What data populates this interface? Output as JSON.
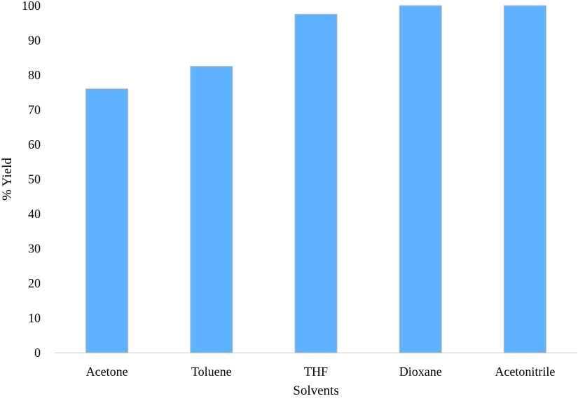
{
  "chart_data": {
    "type": "bar",
    "title": "",
    "xlabel": "Solvents",
    "ylabel": "% Yield",
    "categories": [
      "Acetone",
      "Toluene",
      "THF",
      "Dioxane",
      "Acetonitrile"
    ],
    "values": [
      76,
      82.5,
      97.5,
      100,
      100
    ],
    "ylim": [
      0,
      100
    ],
    "yticks": [
      "0",
      "10",
      "20",
      "30",
      "40",
      "50",
      "60",
      "70",
      "80",
      "90",
      "100"
    ],
    "grid": false,
    "legend": "none",
    "colors": {
      "bar_fill": "#5fb2ff",
      "bar_edge": "#b7b7b7",
      "axis": "#d0d0d0"
    }
  }
}
